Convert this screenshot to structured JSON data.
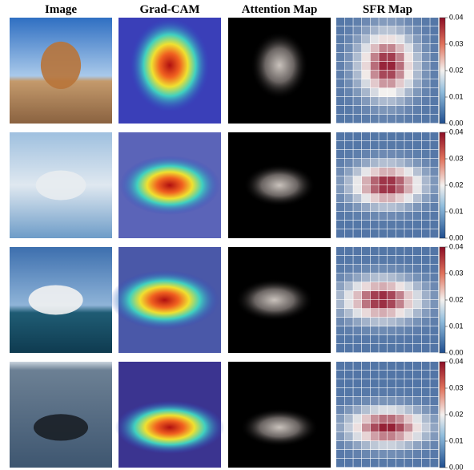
{
  "headers": [
    "Image",
    "Grad-CAM",
    "Attention Map",
    "SFR Map"
  ],
  "rows": [
    {
      "colorbar_ticks": [
        "0.00",
        "0.01",
        "0.02",
        "0.03",
        "0.04"
      ]
    },
    {
      "colorbar_ticks": [
        "0.00",
        "0.01",
        "0.02",
        "0.03",
        "0.04"
      ]
    },
    {
      "colorbar_ticks": [
        "0.00",
        "0.01",
        "0.02",
        "0.03",
        "0.04"
      ]
    },
    {
      "colorbar_ticks": [
        "0.00",
        "0.01",
        "0.02",
        "0.03",
        "0.04"
      ]
    }
  ]
}
